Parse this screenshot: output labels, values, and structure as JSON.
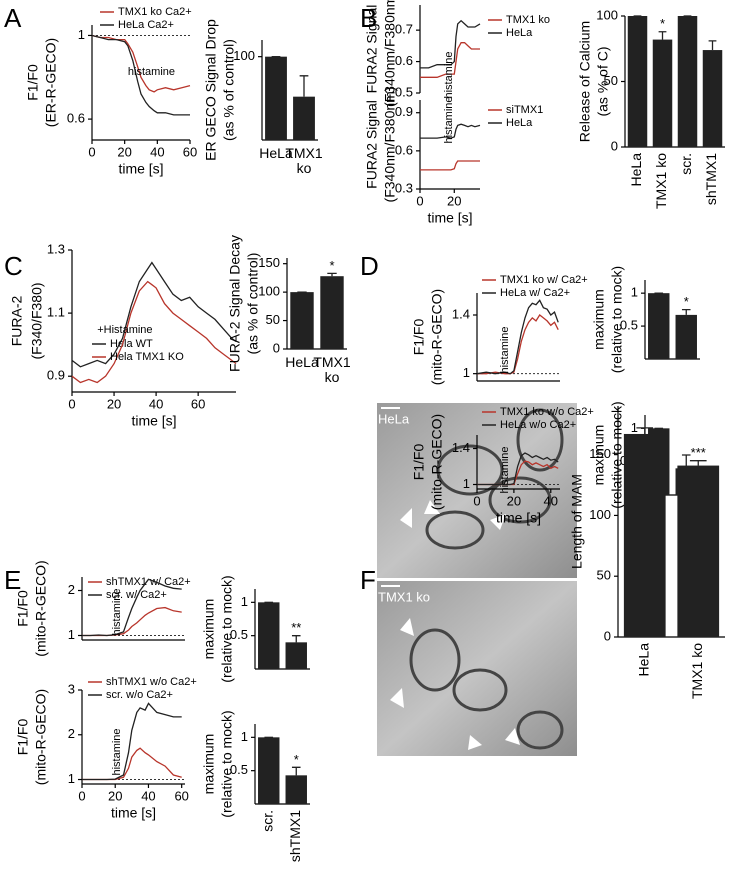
{
  "panel_labels": [
    "A",
    "B",
    "C",
    "D",
    "E",
    "F"
  ],
  "images": [
    {
      "label": "HeLa"
    },
    {
      "label": "TMX1 ko"
    }
  ],
  "chart_data": [
    {
      "type": "line",
      "ylabel": [
        "F1/F0",
        "(ER-R-GECO)"
      ],
      "xlabel": "time [s]",
      "xlim": [
        0,
        60
      ],
      "xticks": [
        0,
        20,
        40,
        60
      ],
      "ylim": [
        0.5,
        1.05
      ],
      "yticks": [
        0.6,
        1
      ],
      "reference_line": 1,
      "annotation": {
        "text": "histamine",
        "x": 22
      },
      "x": [
        0,
        5,
        10,
        15,
        20,
        22,
        25,
        28,
        30,
        33,
        35,
        38,
        40,
        45,
        50,
        55,
        60
      ],
      "series": [
        {
          "name": "TMX1 ko Ca2+",
          "color": "#b8352b",
          "values": [
            1,
            0.99,
            0.99,
            0.98,
            0.98,
            0.96,
            0.92,
            0.85,
            0.8,
            0.76,
            0.74,
            0.73,
            0.74,
            0.75,
            0.74,
            0.75,
            0.76
          ]
        },
        {
          "name": "HeLa Ca2+",
          "color": "#222222",
          "values": [
            1,
            0.99,
            0.98,
            0.98,
            0.97,
            0.95,
            0.88,
            0.78,
            0.72,
            0.68,
            0.66,
            0.64,
            0.63,
            0.63,
            0.62,
            0.62,
            0.62
          ]
        }
      ]
    },
    {
      "type": "bar",
      "ylabel": [
        "ER GECO Signal Drop",
        "(as % of control)"
      ],
      "categories": [
        "HeLa",
        "TMX1 ko"
      ],
      "values": [
        100,
        52
      ],
      "errors": [
        0,
        25
      ],
      "significance": [
        null,
        null
      ],
      "ylim": [
        0,
        120
      ],
      "yticks": [
        100
      ],
      "color": "#222222"
    },
    {
      "type": "line",
      "ylabel": [
        "FURA2 Signal",
        "(F340nm/F380nm)"
      ],
      "xlim": [
        0,
        35
      ],
      "ylim": [
        0.5,
        0.78
      ],
      "yticks": [
        0.5,
        0.6,
        0.7
      ],
      "annotation": {
        "text": "histamine",
        "x": 20
      },
      "x": [
        0,
        5,
        10,
        15,
        18,
        20,
        21,
        22,
        24,
        26,
        28,
        30,
        32,
        35
      ],
      "series": [
        {
          "name": "TMX1 ko",
          "color": "#b8352b",
          "values": [
            0.55,
            0.55,
            0.55,
            0.56,
            0.56,
            0.56,
            0.6,
            0.64,
            0.66,
            0.66,
            0.65,
            0.64,
            0.64,
            0.64
          ]
        },
        {
          "name": "HeLa",
          "color": "#222222",
          "values": [
            0.58,
            0.58,
            0.59,
            0.59,
            0.59,
            0.6,
            0.68,
            0.72,
            0.73,
            0.72,
            0.71,
            0.71,
            0.71,
            0.72
          ]
        }
      ]
    },
    {
      "type": "line",
      "ylabel": [
        "FURA2 Signal",
        "(F340nm/F380nm)"
      ],
      "xlabel": "time [s]",
      "xlim": [
        0,
        35
      ],
      "xticks": [
        0,
        20
      ],
      "ylim": [
        0.3,
        1.0
      ],
      "yticks": [
        0.3,
        0.6,
        0.9
      ],
      "annotation": {
        "text": "histamine",
        "x": 20
      },
      "x": [
        0,
        5,
        10,
        15,
        18,
        20,
        21,
        22,
        24,
        26,
        28,
        30,
        32,
        35
      ],
      "series": [
        {
          "name": "siTMX1",
          "color": "#b8352b",
          "values": [
            0.45,
            0.45,
            0.45,
            0.45,
            0.45,
            0.46,
            0.5,
            0.52,
            0.52,
            0.52,
            0.52,
            0.52,
            0.52,
            0.52
          ]
        },
        {
          "name": "HeLa",
          "color": "#222222",
          "values": [
            0.7,
            0.7,
            0.7,
            0.71,
            0.7,
            0.71,
            0.77,
            0.8,
            0.81,
            0.8,
            0.79,
            0.8,
            0.79,
            0.8
          ]
        }
      ]
    },
    {
      "type": "bar",
      "ylabel": [
        "Release of Calcium",
        "(as % of C)"
      ],
      "categories": [
        "HeLa",
        "TMX1 ko",
        "scr.",
        "shTMX1"
      ],
      "values": [
        100,
        82,
        100,
        74
      ],
      "errors": [
        0,
        6,
        0,
        7
      ],
      "significance": [
        null,
        "*",
        null,
        null
      ],
      "ylim": [
        0,
        100
      ],
      "yticks": [
        0,
        50,
        100
      ],
      "color": "#222222"
    },
    {
      "type": "line",
      "ylabel": [
        "FURA-2",
        "(F340/F380)"
      ],
      "xlabel": "time [s]",
      "xlim": [
        0,
        78
      ],
      "xticks": [
        0,
        20,
        40,
        60
      ],
      "ylim": [
        0.85,
        1.3
      ],
      "yticks": [
        0.9,
        1.1,
        1.3
      ],
      "annotation": {
        "text": "+Histamine",
        "x": 12
      },
      "x": [
        0,
        4,
        8,
        12,
        16,
        20,
        24,
        28,
        32,
        36,
        38,
        40,
        44,
        48,
        52,
        56,
        60,
        64,
        68,
        72,
        76,
        78
      ],
      "series": [
        {
          "name": "Hela WT",
          "color": "#222222",
          "values": [
            0.95,
            0.93,
            0.94,
            0.95,
            0.94,
            0.97,
            1.02,
            1.12,
            1.2,
            1.24,
            1.26,
            1.24,
            1.2,
            1.16,
            1.14,
            1.15,
            1.12,
            1.1,
            1.08,
            1.05,
            1.02,
            1.01
          ]
        },
        {
          "name": "Hela TMX1 KO",
          "color": "#b8352b",
          "values": [
            0.9,
            0.88,
            0.89,
            0.88,
            0.9,
            0.94,
            1.0,
            1.1,
            1.17,
            1.2,
            1.19,
            1.18,
            1.13,
            1.1,
            1.08,
            1.06,
            1.04,
            1.02,
            0.99,
            0.97,
            0.95,
            0.94
          ]
        }
      ]
    },
    {
      "type": "bar",
      "ylabel": [
        "FURA-2 Signal Decay",
        "(as % of control)"
      ],
      "categories": [
        "HeLa",
        "TMX1 ko"
      ],
      "values": [
        100,
        128
      ],
      "errors": [
        0,
        5
      ],
      "significance": [
        null,
        "*"
      ],
      "ylim": [
        0,
        160
      ],
      "yticks": [
        0,
        50,
        100,
        150
      ],
      "color": "#222222"
    },
    {
      "type": "line",
      "ylabel": [
        "F1/F0",
        "(mito-R-GECO)"
      ],
      "xlim": [
        0,
        45
      ],
      "ylim": [
        0.95,
        1.55
      ],
      "yticks": [
        1,
        1.4
      ],
      "reference_line": 1,
      "annotation": {
        "text": "histamine",
        "x": 18
      },
      "x": [
        0,
        5,
        10,
        15,
        18,
        20,
        22,
        24,
        26,
        28,
        30,
        32,
        34,
        36,
        38,
        40,
        42,
        44
      ],
      "series": [
        {
          "name": "TMX1 ko w/ Ca2+",
          "color": "#b8352b",
          "values": [
            1,
            1,
            1.01,
            1,
            1,
            1.01,
            1.1,
            1.22,
            1.3,
            1.35,
            1.38,
            1.36,
            1.4,
            1.38,
            1.36,
            1.33,
            1.35,
            1.3
          ]
        },
        {
          "name": "HeLa w/ Ca2+",
          "color": "#222222",
          "values": [
            1,
            1.01,
            1,
            1.01,
            1,
            1.02,
            1.15,
            1.28,
            1.38,
            1.45,
            1.48,
            1.47,
            1.5,
            1.45,
            1.44,
            1.4,
            1.42,
            1.35
          ]
        }
      ]
    },
    {
      "type": "bar",
      "ylabel": [
        "maximum",
        "(relative to mock)"
      ],
      "categories": [
        null,
        null
      ],
      "values": [
        1,
        0.67
      ],
      "errors": [
        0,
        0.08
      ],
      "significance": [
        null,
        "*"
      ],
      "ylim": [
        0,
        1.2
      ],
      "yticks": [
        0.5,
        1
      ],
      "color": "#222222"
    },
    {
      "type": "line",
      "ylabel": [
        "F1/F0",
        "(mito-R-GECO)"
      ],
      "xlabel": "time [s]",
      "xlim": [
        0,
        45
      ],
      "xticks": [
        0,
        20,
        40
      ],
      "ylim": [
        0.95,
        1.55
      ],
      "yticks": [
        1,
        1.4
      ],
      "reference_line": 1,
      "annotation": {
        "text": "histamine",
        "x": 18
      },
      "x": [
        0,
        5,
        10,
        15,
        18,
        20,
        22,
        24,
        26,
        28,
        30,
        32,
        34,
        36,
        38,
        40,
        42,
        44
      ],
      "series": [
        {
          "name": "TMX1 ko w/o Ca2+",
          "color": "#b8352b",
          "values": [
            1,
            1,
            1,
            1,
            1,
            1,
            1.12,
            1.22,
            1.26,
            1.25,
            1.22,
            1.24,
            1.22,
            1.2,
            1.22,
            1.18,
            1.2,
            1.18
          ]
        },
        {
          "name": "HeLa w/o Ca2+",
          "color": "#222222",
          "values": [
            1,
            1,
            1,
            1,
            1,
            1.01,
            1.2,
            1.32,
            1.35,
            1.33,
            1.3,
            1.32,
            1.3,
            1.28,
            1.3,
            1.27,
            1.28,
            1.25
          ]
        }
      ]
    },
    {
      "type": "bar",
      "ylabel": [
        "maximum",
        "(relative to mock)"
      ],
      "categories": [
        "HeLa",
        "TMX1 ko"
      ],
      "values": [
        1,
        0.4
      ],
      "errors": [
        0,
        0.2
      ],
      "significance": [
        null,
        null
      ],
      "ylim": [
        0,
        1.2
      ],
      "yticks": [
        0.5,
        1
      ],
      "color": "#222222"
    },
    {
      "type": "line",
      "ylabel": [
        "F1/F0",
        "(mito-R-GECO)"
      ],
      "xlim": [
        0,
        62
      ],
      "ylim": [
        0.9,
        2.3
      ],
      "yticks": [
        1,
        2
      ],
      "reference_line": 1,
      "annotation": {
        "text": "histamine",
        "x": 24
      },
      "x": [
        0,
        5,
        10,
        15,
        20,
        25,
        28,
        30,
        33,
        35,
        38,
        40,
        45,
        50,
        55,
        60
      ],
      "series": [
        {
          "name": "shTMX1 w/ Ca2+",
          "color": "#b8352b",
          "values": [
            1,
            1,
            1,
            1,
            1.01,
            1.04,
            1.12,
            1.2,
            1.28,
            1.35,
            1.45,
            1.5,
            1.6,
            1.62,
            1.55,
            1.52
          ]
        },
        {
          "name": "scr. w/ Ca2+",
          "color": "#222222",
          "values": [
            1,
            1,
            1.01,
            1,
            1.02,
            1.08,
            1.4,
            1.6,
            1.85,
            2.0,
            2.15,
            2.25,
            2.18,
            2.1,
            2.05,
            2.03
          ]
        }
      ]
    },
    {
      "type": "bar",
      "ylabel": [
        "maximum",
        "(relative to mock)"
      ],
      "categories": [
        null,
        null
      ],
      "values": [
        1,
        0.4
      ],
      "errors": [
        0,
        0.1
      ],
      "significance": [
        null,
        "**"
      ],
      "ylim": [
        0,
        1.2
      ],
      "yticks": [
        0.5,
        1
      ],
      "color": "#222222"
    },
    {
      "type": "line",
      "ylabel": [
        "F1/F0",
        "(mito-R-GECO)"
      ],
      "xlabel": "time [s]",
      "xlim": [
        0,
        62
      ],
      "xticks": [
        0,
        20,
        40,
        60
      ],
      "ylim": [
        0.9,
        3
      ],
      "yticks": [
        1,
        2,
        3
      ],
      "reference_line": 1,
      "annotation": {
        "text": "histamine",
        "x": 24
      },
      "x": [
        0,
        5,
        10,
        15,
        20,
        25,
        28,
        30,
        33,
        35,
        38,
        40,
        45,
        50,
        55,
        60
      ],
      "series": [
        {
          "name": "shTMX1 w/o Ca2+",
          "color": "#b8352b",
          "values": [
            1,
            1,
            1,
            1,
            1,
            1.05,
            1.25,
            1.5,
            1.65,
            1.7,
            1.6,
            1.55,
            1.4,
            1.3,
            1.1,
            1.05
          ]
        },
        {
          "name": "scr. w/o Ca2+",
          "color": "#222222",
          "values": [
            1,
            1,
            1,
            1,
            1.01,
            1.1,
            1.6,
            2.1,
            2.5,
            2.6,
            2.55,
            2.7,
            2.5,
            2.45,
            2.4,
            2.4
          ]
        }
      ]
    },
    {
      "type": "bar",
      "ylabel": [
        "maximum",
        "(relative to mock)"
      ],
      "categories": [
        "scr.",
        "shTMX1"
      ],
      "values": [
        1,
        0.43
      ],
      "errors": [
        0,
        0.12
      ],
      "significance": [
        null,
        "*"
      ],
      "ylim": [
        0,
        1.2
      ],
      "yticks": [
        0.5,
        1
      ],
      "color": "#222222"
    },
    {
      "type": "bar",
      "ylabel": [
        "Length of MAM"
      ],
      "categories": [
        "HeLa",
        "TMX1 ko"
      ],
      "values": [
        167,
        141
      ],
      "errors": [
        5,
        4
      ],
      "significance": [
        null,
        "***"
      ],
      "ylim": [
        0,
        190
      ],
      "yticks": [
        0,
        50,
        100,
        150
      ],
      "color": "#222222"
    }
  ]
}
